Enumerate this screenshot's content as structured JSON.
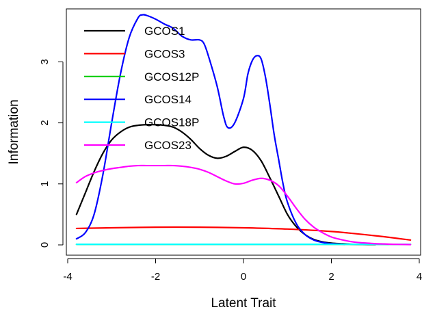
{
  "chart_data": {
    "type": "line",
    "title": "",
    "xlabel": "Latent Trait",
    "ylabel": "Information",
    "xlim": [
      -4,
      4
    ],
    "ylim": [
      0,
      4
    ],
    "x_ticks": [
      -4,
      -2,
      0,
      2,
      4
    ],
    "y_ticks": [
      0,
      1,
      2,
      3
    ],
    "x_tick_labels": [
      "-4",
      "-2",
      "0",
      "2",
      "4"
    ],
    "y_tick_labels": [
      "0",
      "1",
      "2",
      "3"
    ],
    "grid": false,
    "legend_position": "top-left",
    "series": [
      {
        "name": "GCOS1",
        "color": "#000000",
        "x": [
          -3.8,
          -3.6,
          -3.4,
          -3.2,
          -3.0,
          -2.8,
          -2.6,
          -2.4,
          -2.2,
          -2.0,
          -1.8,
          -1.6,
          -1.4,
          -1.2,
          -1.0,
          -0.8,
          -0.6,
          -0.4,
          -0.2,
          0.0,
          0.2,
          0.4,
          0.6,
          0.8,
          1.0,
          1.2,
          1.4,
          1.6,
          1.8,
          2.0,
          2.2,
          2.5,
          3.0
        ],
        "y": [
          0.5,
          0.85,
          1.2,
          1.5,
          1.72,
          1.85,
          1.93,
          1.96,
          1.97,
          1.97,
          1.96,
          1.93,
          1.85,
          1.73,
          1.58,
          1.47,
          1.42,
          1.45,
          1.53,
          1.6,
          1.55,
          1.38,
          1.1,
          0.8,
          0.5,
          0.3,
          0.17,
          0.09,
          0.05,
          0.03,
          0.02,
          0.01,
          0.005
        ]
      },
      {
        "name": "GCOS3",
        "color": "#ff0000",
        "x": [
          -3.8,
          -3.0,
          -2.0,
          -1.0,
          0.0,
          1.0,
          2.0,
          3.0,
          3.8
        ],
        "y": [
          0.27,
          0.28,
          0.29,
          0.29,
          0.28,
          0.26,
          0.22,
          0.15,
          0.08
        ]
      },
      {
        "name": "GCOS12P",
        "color": "#00cd00",
        "x": [
          -3.8,
          -2.0,
          0.0,
          2.0,
          3.8
        ],
        "y": [
          0.01,
          0.01,
          0.01,
          0.01,
          0.01
        ]
      },
      {
        "name": "GCOS14",
        "color": "#0000ff",
        "x": [
          -3.8,
          -3.6,
          -3.4,
          -3.2,
          -3.0,
          -2.8,
          -2.6,
          -2.4,
          -2.3,
          -2.2,
          -2.0,
          -1.8,
          -1.6,
          -1.4,
          -1.2,
          -1.0,
          -0.9,
          -0.8,
          -0.6,
          -0.45,
          -0.35,
          -0.2,
          0.0,
          0.1,
          0.2,
          0.3,
          0.4,
          0.5,
          0.6,
          0.7,
          0.8,
          0.9,
          1.0,
          1.2,
          1.4,
          1.6,
          1.8,
          2.0,
          2.3
        ],
        "y": [
          0.1,
          0.2,
          0.5,
          1.15,
          2.0,
          2.8,
          3.4,
          3.72,
          3.77,
          3.76,
          3.7,
          3.62,
          3.55,
          3.42,
          3.36,
          3.36,
          3.3,
          3.1,
          2.6,
          2.1,
          1.92,
          2.0,
          2.4,
          2.8,
          3.02,
          3.1,
          3.05,
          2.75,
          2.3,
          1.8,
          1.4,
          1.0,
          0.7,
          0.35,
          0.17,
          0.08,
          0.04,
          0.02,
          0.01
        ]
      },
      {
        "name": "GCOS18P",
        "color": "#00ffff",
        "x": [
          -3.8,
          -2.0,
          0.0,
          2.0,
          3.8
        ],
        "y": [
          0.01,
          0.01,
          0.01,
          0.01,
          0.01
        ]
      },
      {
        "name": "GCOS23",
        "color": "#ff00ff",
        "x": [
          -3.8,
          -3.6,
          -3.4,
          -3.2,
          -3.0,
          -2.8,
          -2.6,
          -2.4,
          -2.2,
          -2.0,
          -1.8,
          -1.6,
          -1.4,
          -1.2,
          -1.0,
          -0.8,
          -0.6,
          -0.4,
          -0.2,
          0.0,
          0.2,
          0.4,
          0.6,
          0.8,
          1.0,
          1.2,
          1.4,
          1.6,
          1.8,
          2.0,
          2.2,
          2.4,
          2.6,
          2.8,
          3.0,
          3.2,
          3.4,
          3.6,
          3.8
        ],
        "y": [
          1.02,
          1.12,
          1.18,
          1.22,
          1.25,
          1.27,
          1.29,
          1.3,
          1.3,
          1.3,
          1.3,
          1.3,
          1.29,
          1.27,
          1.24,
          1.19,
          1.12,
          1.05,
          1.0,
          1.01,
          1.06,
          1.09,
          1.06,
          0.97,
          0.8,
          0.6,
          0.42,
          0.29,
          0.2,
          0.13,
          0.09,
          0.06,
          0.04,
          0.03,
          0.02,
          0.015,
          0.01,
          0.008,
          0.005
        ]
      }
    ]
  }
}
